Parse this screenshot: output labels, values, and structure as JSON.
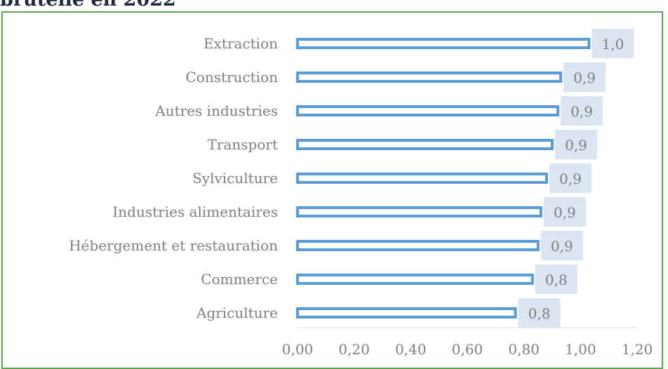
{
  "page": {
    "title": "brutelle en 2022"
  },
  "colors": {
    "frame": "#5aa64e",
    "bar_stroke": "#5b9bd5",
    "label_bg": "#dbe5f1",
    "text": "#7f7f7f"
  },
  "chart_data": {
    "type": "bar",
    "orientation": "horizontal",
    "categories": [
      "Extraction",
      "Construction",
      "Autres industries",
      "Transport",
      "Sylviculture",
      "Industries alimentaires",
      "Hébergement et restauration",
      "Commerce",
      "Agriculture"
    ],
    "values": [
      1.03,
      0.93,
      0.92,
      0.9,
      0.88,
      0.86,
      0.85,
      0.83,
      0.77
    ],
    "data_labels": [
      "1,0",
      "0,9",
      "0,9",
      "0,9",
      "0,9",
      "0,9",
      "0,9",
      "0,8",
      "0,8"
    ],
    "xlim": [
      0,
      1.2
    ],
    "xticks": [
      "0,00",
      "0,20",
      "0,40",
      "0,60",
      "0,80",
      "1,00",
      "1,20"
    ],
    "grid": false,
    "legend": "none"
  }
}
